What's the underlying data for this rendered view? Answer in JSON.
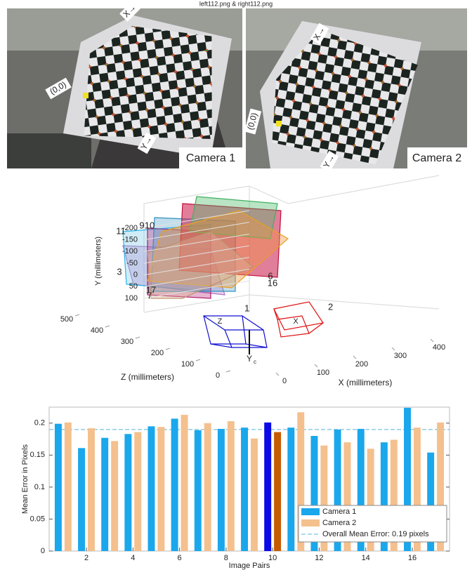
{
  "header": {
    "title": "left112.png & right112.png"
  },
  "images": [
    {
      "label": "Camera 1",
      "annotations": [
        "X→",
        "(0,0)",
        "Y→"
      ]
    },
    {
      "label": "Camera 2",
      "annotations": [
        "X→",
        "(0,0)",
        "Y→"
      ]
    }
  ],
  "chart_data": [
    {
      "type": "extrinsics3d",
      "ylabel": "Y (millimeters)",
      "zlabel": "Z (millimeters)",
      "xlabel": "X (millimeters)",
      "ylim": [
        -200,
        100
      ],
      "yticks": [
        -200,
        -150,
        -100,
        -50,
        0,
        50,
        100
      ],
      "zlim": [
        0,
        500
      ],
      "zticks": [
        0,
        100,
        200,
        300,
        400,
        500
      ],
      "xlim": [
        0,
        400
      ],
      "xticks": [
        0,
        100,
        200,
        300,
        400
      ],
      "plane_labels": [
        {
          "text": "11",
          "color": "#29b6e8"
        },
        {
          "text": "9",
          "color": "#b0186e"
        },
        {
          "text": "10",
          "color": "#7a2a8a"
        },
        {
          "text": "3",
          "color": "#e8a020"
        },
        {
          "text": "7",
          "color": "#e8a020"
        },
        {
          "text": "17",
          "color": "#3050c0"
        },
        {
          "text": "6",
          "color": "#c0103a"
        },
        {
          "text": "16",
          "color": "#e8b020"
        }
      ],
      "camera_labels": [
        {
          "text": "1",
          "color": "#1010d0"
        },
        {
          "text": "2",
          "color": "#e01010"
        }
      ],
      "camera_axis_labels": [
        "Z",
        "X",
        "Y",
        "c"
      ]
    },
    {
      "type": "bar",
      "ylabel": "Mean Error in Pixels",
      "xlabel": "Image Pairs",
      "x": [
        1,
        2,
        3,
        4,
        5,
        6,
        7,
        8,
        9,
        10,
        11,
        12,
        13,
        14,
        15,
        16,
        17
      ],
      "xlim": [
        0.4,
        17.6
      ],
      "xticks": [
        2,
        4,
        6,
        8,
        10,
        12,
        14,
        16
      ],
      "ylim": [
        0,
        0.225
      ],
      "yticks": [
        0,
        0.05,
        0.1,
        0.15,
        0.2
      ],
      "series": [
        {
          "name": "Camera 1",
          "color": "#1aa7ec",
          "highlight_color": "#0a0ae6",
          "values": [
            0.199,
            0.161,
            0.177,
            0.183,
            0.195,
            0.207,
            0.189,
            0.191,
            0.193,
            0.201,
            0.193,
            0.18,
            0.19,
            0.191,
            0.17,
            0.224,
            0.154
          ]
        },
        {
          "name": "Camera 2",
          "color": "#f4c08e",
          "highlight_color": "#c65a00",
          "values": [
            0.201,
            0.192,
            0.172,
            0.186,
            0.194,
            0.213,
            0.2,
            0.203,
            0.176,
            0.186,
            0.217,
            0.165,
            0.17,
            0.16,
            0.174,
            0.193,
            0.201
          ]
        }
      ],
      "highlight_x": 10,
      "mean_line": {
        "value": 0.19,
        "label": "Overall Mean Error: 0.19 pixels",
        "color": "#5ab4d8"
      },
      "legend": "lower right"
    }
  ]
}
